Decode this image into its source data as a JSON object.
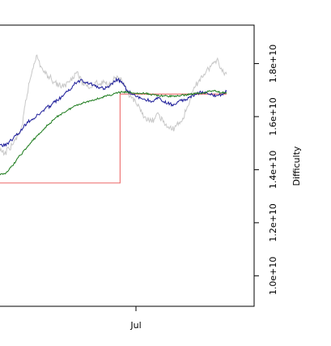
{
  "chart_data": {
    "type": "line",
    "ylabel": "Difficulty",
    "xlabel": "",
    "x_ticks": [
      {
        "label": "Jul",
        "x": 0.6
      }
    ],
    "y_ticks": [
      {
        "label": "1.0e+10",
        "value": 10000000000
      },
      {
        "label": "1.2e+10",
        "value": 12000000000
      },
      {
        "label": "1.4e+10",
        "value": 14000000000
      },
      {
        "label": "1.6e+10",
        "value": 16000000000
      },
      {
        "label": "1.8e+10",
        "value": 18000000000
      }
    ],
    "xlim": [
      0,
      1.1
    ],
    "ylim": [
      8850000000,
      19450000000
    ],
    "series": [
      {
        "color": "#ee7777",
        "x": [
          0,
          0.53,
          0.53,
          1.0
        ],
        "y": [
          13500000000,
          13500000000,
          16850000000,
          16850000000
        ],
        "step": true
      },
      {
        "color": "#c8c8c8",
        "x": [
          0,
          0.02,
          0.04,
          0.06,
          0.08,
          0.1,
          0.11,
          0.13,
          0.15,
          0.16,
          0.18,
          0.2,
          0.22,
          0.24,
          0.26,
          0.28,
          0.3,
          0.32,
          0.34,
          0.36,
          0.38,
          0.4,
          0.42,
          0.44,
          0.46,
          0.48,
          0.5,
          0.52,
          0.54,
          0.56,
          0.58,
          0.6,
          0.62,
          0.64,
          0.66,
          0.68,
          0.7,
          0.72,
          0.74,
          0.76,
          0.78,
          0.8,
          0.82,
          0.84,
          0.86,
          0.88,
          0.9,
          0.92,
          0.94,
          0.96,
          0.98,
          1.0
        ],
        "y": [
          14700000000,
          14600000000,
          14800000000,
          15000000000,
          15300000000,
          15700000000,
          16400000000,
          17300000000,
          18000000000,
          18300000000,
          17900000000,
          17600000000,
          17500000000,
          17300000000,
          17200000000,
          17100000000,
          17300000000,
          17500000000,
          17700000000,
          17300000000,
          17200000000,
          17100000000,
          17300000000,
          17200000000,
          17300000000,
          17200000000,
          17400000000,
          17500000000,
          17300000000,
          16900000000,
          16700000000,
          16500000000,
          16200000000,
          16000000000,
          15800000000,
          15900000000,
          16100000000,
          15800000000,
          15600000000,
          15500000000,
          15700000000,
          15800000000,
          16200000000,
          16700000000,
          17100000000,
          17400000000,
          17600000000,
          17800000000,
          18000000000,
          18200000000,
          17700000000,
          17600000000
        ]
      },
      {
        "color": "#1c1c99",
        "x": [
          0,
          0.02,
          0.04,
          0.06,
          0.08,
          0.1,
          0.12,
          0.14,
          0.16,
          0.18,
          0.2,
          0.22,
          0.24,
          0.26,
          0.28,
          0.3,
          0.32,
          0.34,
          0.36,
          0.38,
          0.4,
          0.42,
          0.44,
          0.46,
          0.48,
          0.5,
          0.52,
          0.54,
          0.56,
          0.58,
          0.6,
          0.62,
          0.64,
          0.66,
          0.68,
          0.7,
          0.72,
          0.74,
          0.76,
          0.78,
          0.8,
          0.82,
          0.84,
          0.86,
          0.88,
          0.9,
          0.92,
          0.94,
          0.96,
          0.98,
          1.0
        ],
        "y": [
          14950000000,
          14900000000,
          15050000000,
          15200000000,
          15350000000,
          15550000000,
          15800000000,
          15900000000,
          16000000000,
          16150000000,
          16300000000,
          16400000000,
          16550000000,
          16650000000,
          16800000000,
          16950000000,
          17150000000,
          17300000000,
          17400000000,
          17300000000,
          17250000000,
          17150000000,
          17100000000,
          17050000000,
          17100000000,
          17300000000,
          17400000000,
          17250000000,
          17000000000,
          16850000000,
          16750000000,
          16700000000,
          16650000000,
          16600000000,
          16600000000,
          16700000000,
          16550000000,
          16500000000,
          16450000000,
          16500000000,
          16600000000,
          16650000000,
          16750000000,
          16850000000,
          16900000000,
          16900000000,
          16850000000,
          16800000000,
          16800000000,
          16850000000,
          16950000000
        ]
      },
      {
        "color": "#1a7a1a",
        "x": [
          0,
          0.02,
          0.04,
          0.06,
          0.08,
          0.1,
          0.12,
          0.14,
          0.16,
          0.18,
          0.2,
          0.22,
          0.24,
          0.26,
          0.28,
          0.3,
          0.32,
          0.34,
          0.36,
          0.38,
          0.4,
          0.42,
          0.44,
          0.46,
          0.48,
          0.5,
          0.52,
          0.54,
          0.56,
          0.58,
          0.6,
          0.62,
          0.64,
          0.66,
          0.68,
          0.7,
          0.72,
          0.74,
          0.76,
          0.78,
          0.8,
          0.82,
          0.84,
          0.86,
          0.88,
          0.9,
          0.92,
          0.94,
          0.96,
          0.98,
          1.0
        ],
        "y": [
          13800000000,
          13850000000,
          14000000000,
          14200000000,
          14450000000,
          14650000000,
          14850000000,
          15050000000,
          15250000000,
          15400000000,
          15600000000,
          15750000000,
          15900000000,
          16050000000,
          16150000000,
          16250000000,
          16350000000,
          16450000000,
          16500000000,
          16550000000,
          16600000000,
          16650000000,
          16700000000,
          16750000000,
          16800000000,
          16850000000,
          16900000000,
          16920000000,
          16920000000,
          16900000000,
          16880000000,
          16870000000,
          16870000000,
          16850000000,
          16820000000,
          16800000000,
          16780000000,
          16770000000,
          16770000000,
          16780000000,
          16800000000,
          16820000000,
          16850000000,
          16870000000,
          16880000000,
          16900000000,
          16950000000,
          16980000000,
          16950000000,
          16900000000,
          16920000000
        ]
      }
    ]
  }
}
